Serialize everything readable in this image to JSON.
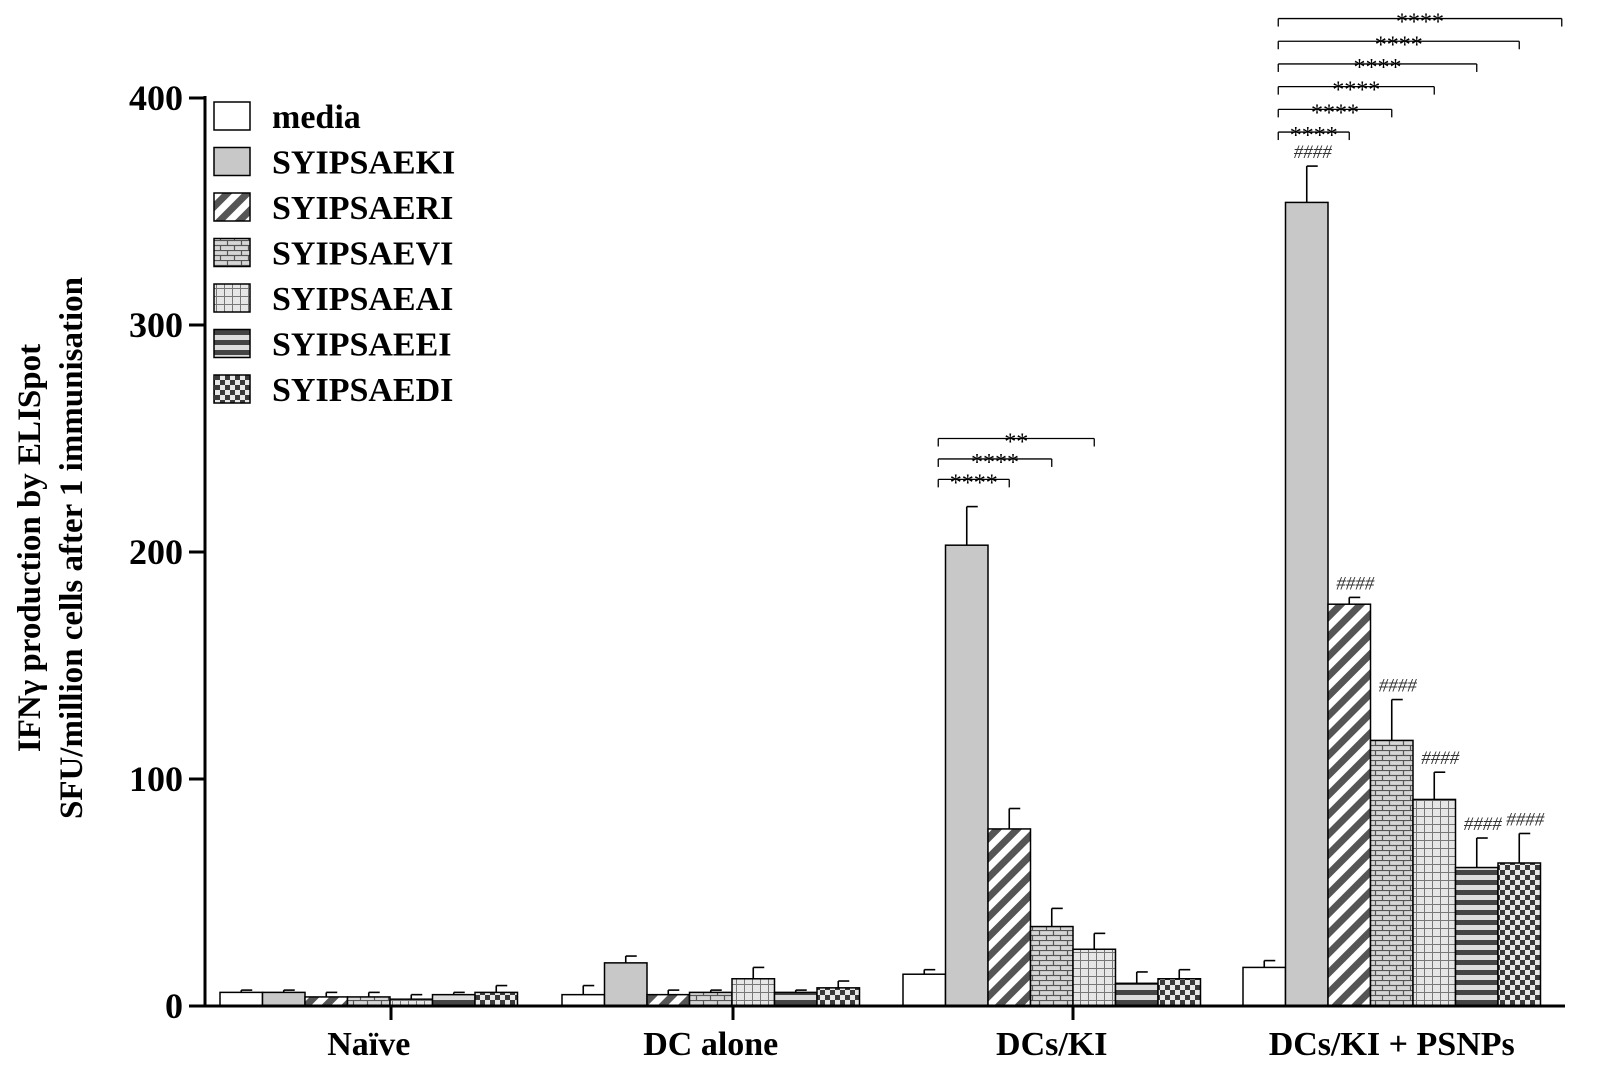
{
  "chart_data": {
    "type": "bar",
    "ylabel_lines": [
      "IFNγ production by ELISpot",
      "SFU/million cells after 1 immunisation"
    ],
    "xlabel": "",
    "ylim": [
      0,
      400
    ],
    "yticks": [
      0,
      100,
      200,
      300,
      400
    ],
    "tick_labels": [
      "0",
      "100",
      "200",
      "300",
      "400"
    ],
    "categories": [
      "Naïve",
      "DC alone",
      "DCs/KI",
      "DCs/KI + PSNPs"
    ],
    "legend_position": "top-left",
    "series": [
      {
        "name": "media",
        "pattern": "white",
        "values": [
          6,
          5,
          14,
          17
        ],
        "errors": [
          1,
          4,
          2,
          3
        ]
      },
      {
        "name": "SYIPSAEKI",
        "pattern": "gray",
        "values": [
          6,
          19,
          203,
          354
        ],
        "errors": [
          1,
          3,
          17,
          16
        ]
      },
      {
        "name": "SYIPSAERI",
        "pattern": "diagonal",
        "values": [
          4,
          5,
          78,
          177
        ],
        "errors": [
          2,
          2,
          9,
          3
        ]
      },
      {
        "name": "SYIPSAEVI",
        "pattern": "brick",
        "values": [
          4,
          6,
          35,
          117
        ],
        "errors": [
          2,
          1,
          8,
          18
        ]
      },
      {
        "name": "SYIPSAEAI",
        "pattern": "grid",
        "values": [
          3,
          12,
          25,
          91
        ],
        "errors": [
          2,
          5,
          7,
          12
        ]
      },
      {
        "name": "SYIPSAEEI",
        "pattern": "hstripe",
        "values": [
          5,
          6,
          10,
          61
        ],
        "errors": [
          1,
          1,
          5,
          13
        ]
      },
      {
        "name": "SYIPSAEDI",
        "pattern": "checker",
        "values": [
          6,
          8,
          12,
          63
        ],
        "errors": [
          3,
          3,
          4,
          13
        ]
      }
    ],
    "significance": [
      {
        "category": 2,
        "from": 1,
        "to": 2,
        "label": "****",
        "y": 232
      },
      {
        "category": 2,
        "from": 1,
        "to": 3,
        "label": "****",
        "y": 241
      },
      {
        "category": 2,
        "from": 1,
        "to": 4,
        "label": "**",
        "y": 250
      },
      {
        "category": 3,
        "from": 1,
        "to": 2,
        "label": "****",
        "y": 385
      },
      {
        "category": 3,
        "from": 1,
        "to": 3,
        "label": "****",
        "y": 395
      },
      {
        "category": 3,
        "from": 1,
        "to": 4,
        "label": "****",
        "y": 405
      },
      {
        "category": 3,
        "from": 1,
        "to": 5,
        "label": "****",
        "y": 415
      },
      {
        "category": 3,
        "from": 1,
        "to": 6,
        "label": "****",
        "y": 425
      },
      {
        "category": 3,
        "from": 1,
        "to": 7,
        "label": "****",
        "y": 435
      }
    ],
    "hash_annotations": [
      {
        "category": 3,
        "series": 1,
        "label": "####"
      },
      {
        "category": 3,
        "series": 2,
        "label": "####"
      },
      {
        "category": 3,
        "series": 3,
        "label": "####"
      },
      {
        "category": 3,
        "series": 4,
        "label": "####"
      },
      {
        "category": 3,
        "series": 5,
        "label": "####"
      },
      {
        "category": 3,
        "series": 6,
        "label": "####"
      }
    ]
  }
}
